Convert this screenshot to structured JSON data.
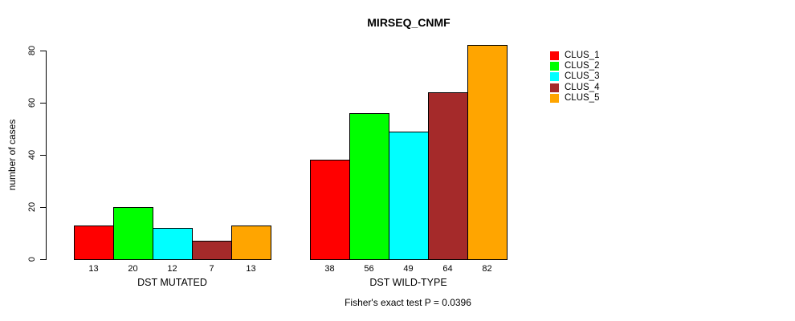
{
  "chart_data": {
    "type": "bar",
    "title": "MIRSEQ_CNMF",
    "ylabel": "number of cases",
    "xlabel": "",
    "categories": [
      "DST MUTATED",
      "DST WILD-TYPE"
    ],
    "series": [
      {
        "name": "CLUS_1",
        "color": "#FF0000",
        "values": [
          13,
          38
        ]
      },
      {
        "name": "CLUS_2",
        "color": "#00FF00",
        "values": [
          20,
          56
        ]
      },
      {
        "name": "CLUS_3",
        "color": "#00FFFF",
        "values": [
          12,
          49
        ]
      },
      {
        "name": "CLUS_4",
        "color": "#A52A2A",
        "values": [
          7,
          64
        ]
      },
      {
        "name": "CLUS_5",
        "color": "#FFA500",
        "values": [
          13,
          82
        ]
      }
    ],
    "yticks": [
      0,
      20,
      40,
      60,
      80
    ],
    "ylim": [
      0,
      82
    ],
    "grid": false,
    "bar_value_labels": true,
    "legend_position": "right",
    "footnote": "Fisher's exact test P = 0.0396"
  }
}
